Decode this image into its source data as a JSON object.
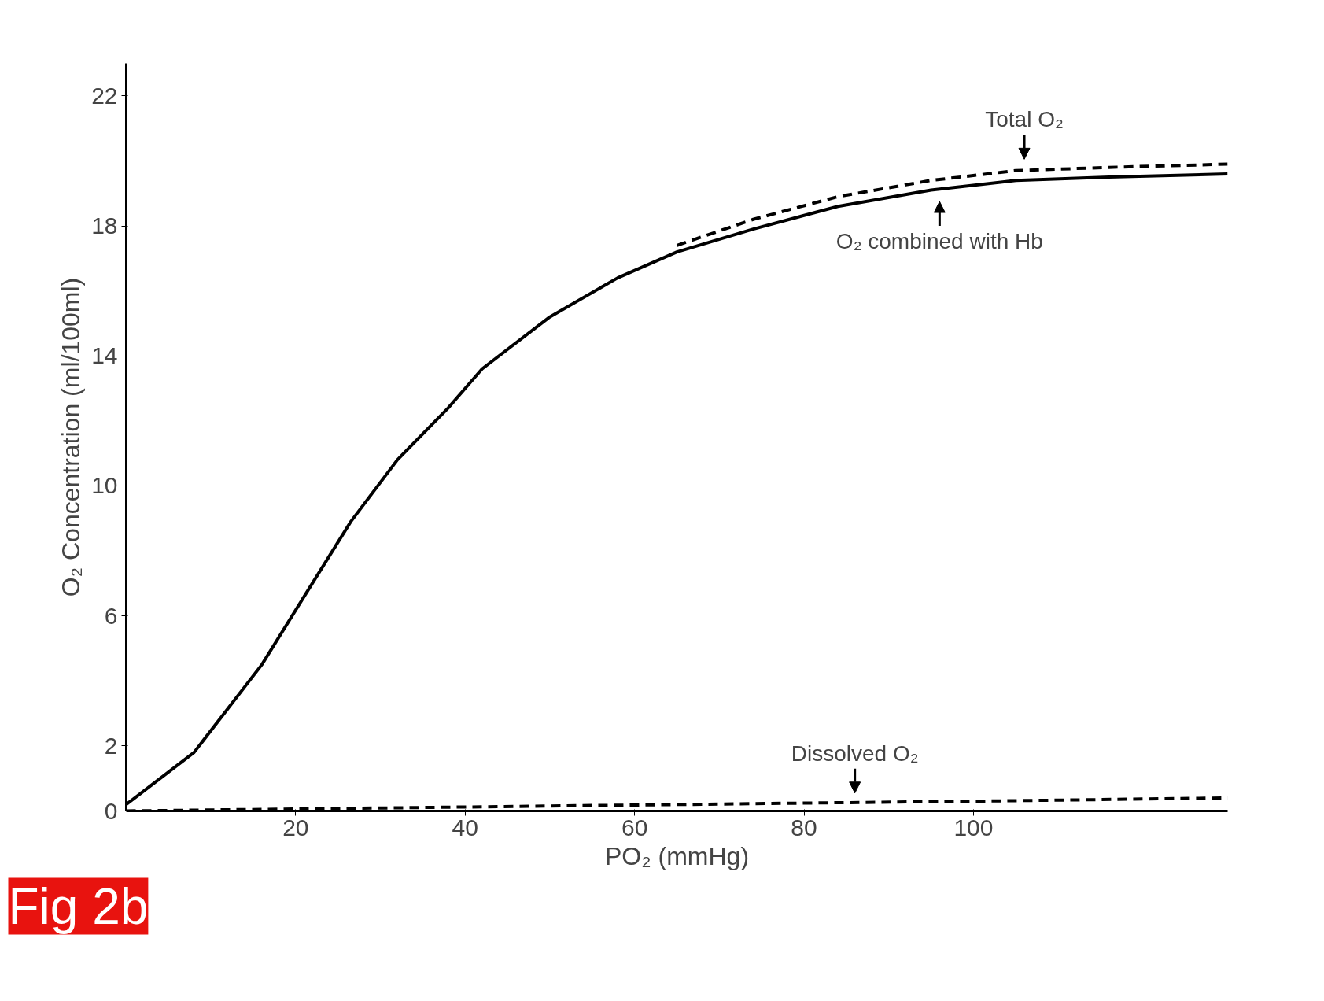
{
  "chart_data": {
    "type": "line",
    "xlabel": "PO₂ (mmHg)",
    "ylabel": "O₂ Concentration (ml/100ml)",
    "xlim": [
      0,
      130
    ],
    "ylim": [
      0,
      23
    ],
    "xticks": [
      20,
      40,
      60,
      80,
      100
    ],
    "yticks": [
      0,
      2,
      6,
      10,
      14,
      18,
      22
    ],
    "grid": false,
    "series": [
      {
        "color": "#000000",
        "line_style": "solid",
        "x": [
          0,
          8,
          16,
          21,
          26.5,
          32,
          38,
          42,
          50,
          58,
          65,
          74,
          84,
          95,
          105,
          116,
          130
        ],
        "values": [
          0.2,
          1.8,
          4.5,
          6.6,
          8.9,
          10.8,
          12.4,
          13.6,
          15.2,
          16.4,
          17.2,
          17.9,
          18.6,
          19.1,
          19.4,
          19.5,
          19.6
        ]
      },
      {
        "color": "#000000",
        "line_style": "dashed",
        "x": [
          65,
          74,
          84,
          95,
          105,
          116,
          130
        ],
        "values": [
          17.4,
          18.2,
          18.9,
          19.4,
          19.7,
          19.8,
          19.9
        ]
      },
      {
        "color": "#000000",
        "line_style": "dashed",
        "x": [
          0,
          33,
          66,
          100,
          130
        ],
        "values": [
          0,
          0.1,
          0.2,
          0.3,
          0.4
        ]
      }
    ],
    "annotations": [
      {
        "text": "Total O₂",
        "x": 106,
        "y": 19.8
      },
      {
        "text": "O₂ combined with Hb",
        "x": 96,
        "y": 19.0
      },
      {
        "text": "Dissolved O₂",
        "x": 86,
        "y": 0.3
      },
      "Fig 2b"
    ]
  }
}
